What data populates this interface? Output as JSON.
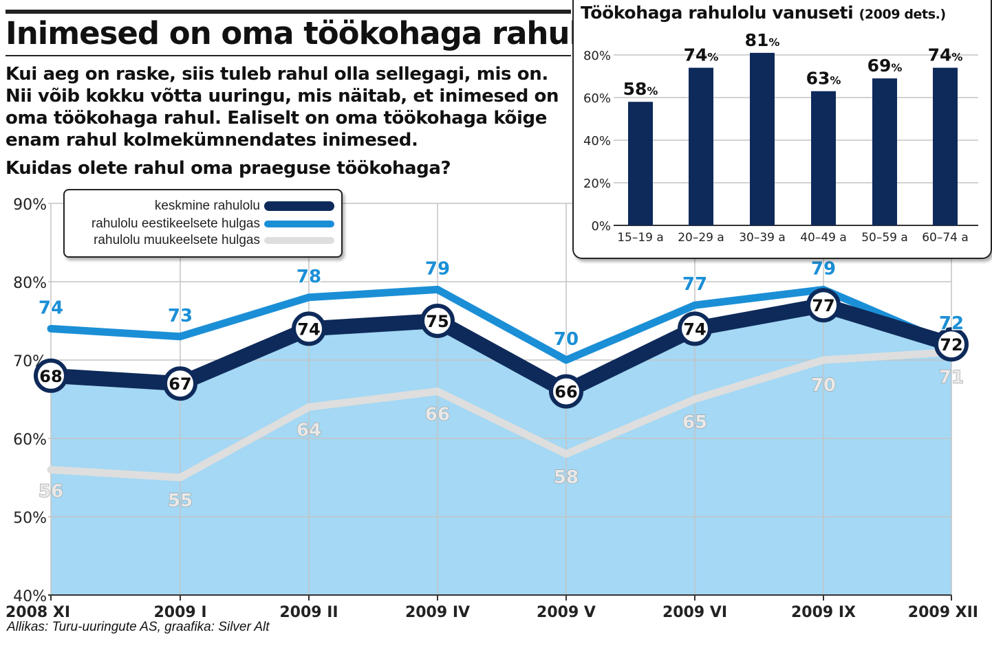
{
  "header": {
    "title": "Inimesed on oma töökohaga rahul",
    "lead": "Kui aeg on raske, siis tuleb rahul olla sellegagi, mis on. Nii võib kokku võtta uuringu, mis näitab, et inimesed on oma töökohaga rahul. Ealiselt on oma töökohaga kõige enam rahul kolmekümnendates inimesed.",
    "question": "Kuidas olete rahul oma praeguse töökohaga?"
  },
  "source": "Allikas: Turu-uuringute AS, graafika: Silver Alt",
  "colors": {
    "dark": "#0e2a5a",
    "blue": "#1b8fd6",
    "gray": "#dedede",
    "area": "#a4d8f4",
    "grid": "#c4c4c4"
  },
  "chart_data": [
    {
      "type": "line",
      "title": "Kuidas olete rahul oma praeguse töökohaga?",
      "categories": [
        "2008 XI",
        "2009 I",
        "2009 II",
        "2009 IV",
        "2009 V",
        "2009 VI",
        "2009 IX",
        "2009 XII"
      ],
      "ylim": [
        40,
        90
      ],
      "yticks": [
        40,
        50,
        60,
        70,
        80,
        90
      ],
      "ytick_labels": [
        "40%",
        "50%",
        "60%",
        "70%",
        "80%",
        "90%"
      ],
      "grid": true,
      "legend_position": "top-left",
      "series": [
        {
          "name": "keskmine rahulolu",
          "values": [
            68,
            67,
            74,
            75,
            66,
            74,
            77,
            72
          ],
          "labels": [
            "68",
            "67",
            "74",
            "75",
            "66",
            "74",
            "77",
            "72"
          ]
        },
        {
          "name": "rahulolu eestikeelsete hulgas",
          "values": [
            74,
            73,
            78,
            79,
            70,
            77,
            79,
            72
          ],
          "labels": [
            "74",
            "73",
            "78",
            "79",
            "70",
            "77",
            "79",
            "72"
          ]
        },
        {
          "name": "rahulolu muukeelsete hulgas",
          "values": [
            56,
            55,
            64,
            66,
            58,
            65,
            70,
            71
          ],
          "labels": [
            "56",
            "55",
            "64",
            "66",
            "58",
            "65",
            "70",
            "71"
          ]
        }
      ]
    },
    {
      "type": "bar",
      "title": "Töökohaga rahulolu vanuseti",
      "subtitle": "(2009 dets.)",
      "categories": [
        "15–19 a",
        "20–29 a",
        "30–39 a",
        "40–49 a",
        "50–59 a",
        "60–74 a"
      ],
      "values": [
        58,
        74,
        81,
        63,
        69,
        74
      ],
      "value_labels": [
        "58",
        "74",
        "81",
        "63",
        "69",
        "74"
      ],
      "value_suffix": "%",
      "ylim": [
        0,
        80
      ],
      "yticks": [
        0,
        20,
        40,
        60,
        80
      ],
      "ytick_labels": [
        "0%",
        "20%",
        "40%",
        "60%",
        "80%"
      ],
      "grid": true
    }
  ]
}
